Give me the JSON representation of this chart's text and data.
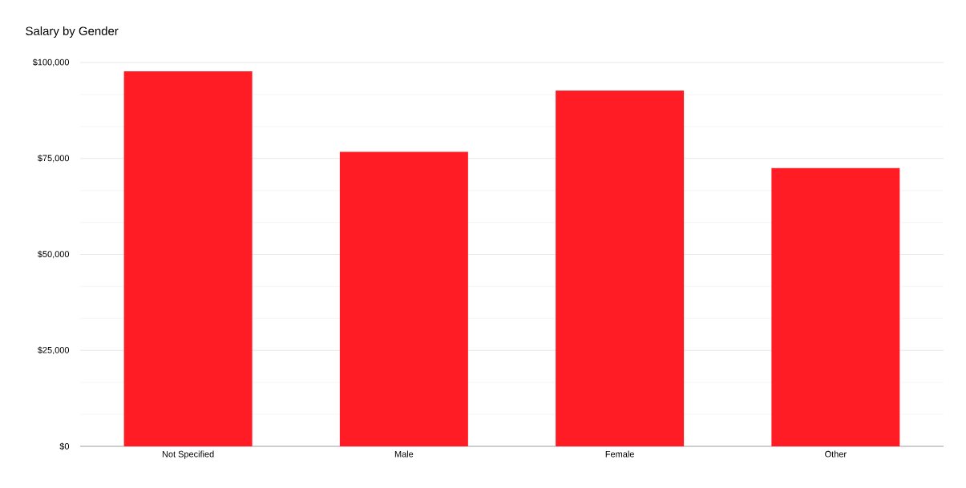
{
  "chart_data": {
    "type": "bar",
    "title": "Salary by Gender",
    "categories": [
      "Not Specified",
      "Male",
      "Female",
      "Other"
    ],
    "values": [
      97700,
      76700,
      92700,
      72500
    ],
    "color": "#ff1c24",
    "ylim": [
      0,
      100000
    ],
    "yticks": [
      {
        "value": 0,
        "label": "$0"
      },
      {
        "value": 25000,
        "label": "$25,000"
      },
      {
        "value": 50000,
        "label": "$50,000"
      },
      {
        "value": 75000,
        "label": "$75,000"
      },
      {
        "value": 100000,
        "label": "$100,000"
      }
    ],
    "grid": "y"
  }
}
